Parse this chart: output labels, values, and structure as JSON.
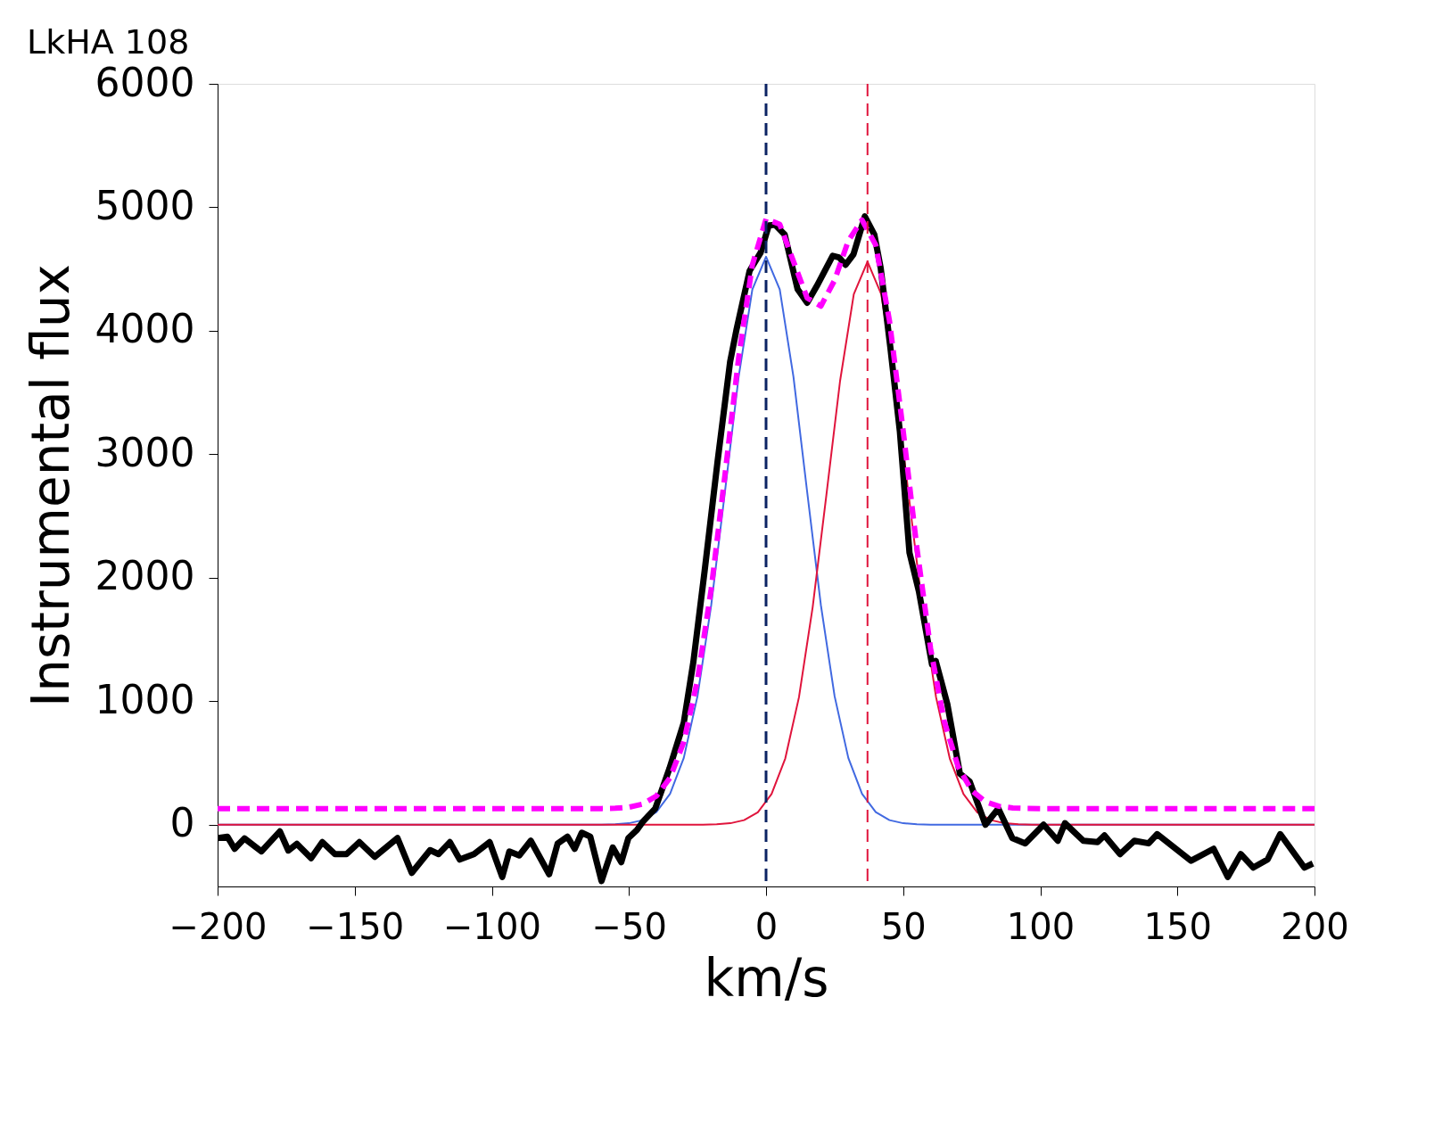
{
  "chart_data": {
    "type": "line",
    "title": "LkHA 108",
    "xlabel": "km/s",
    "ylabel": "Instrumental flux",
    "xlim": [
      -200,
      200
    ],
    "xticks": [
      -200,
      -150,
      -100,
      -50,
      0,
      50,
      100,
      150,
      200
    ],
    "ylim": [
      -500,
      6000
    ],
    "yticks": [
      0,
      1000,
      2000,
      3000,
      4000,
      5000,
      6000
    ],
    "grid": false,
    "marker": "none",
    "ref_lines": [
      {
        "axis": "x",
        "value": 0,
        "color": "#0b2363",
        "line_style": "dashed"
      },
      {
        "axis": "x",
        "value": 37,
        "color": "#e0143c",
        "line_style": "dashed"
      }
    ],
    "series": [
      {
        "color": "#4169e1",
        "line_style": "solid",
        "x": [
          -200,
          -60,
          -55,
          -50,
          -45,
          -40,
          -35,
          -30,
          -25,
          -20,
          -15,
          -10,
          -5,
          0,
          5,
          10,
          15,
          20,
          25,
          30,
          35,
          40,
          45,
          50,
          55,
          60,
          200
        ],
        "values": [
          0,
          1,
          3,
          12,
          37,
          102,
          250,
          541,
          1041,
          1777,
          2694,
          3627,
          4334,
          4600,
          4334,
          3627,
          2694,
          1777,
          1041,
          541,
          250,
          102,
          37,
          12,
          3,
          1,
          0
        ]
      },
      {
        "color": "#e0143c",
        "line_style": "solid",
        "x": [
          -200,
          -23,
          -18,
          -13,
          -8,
          -3,
          2,
          7,
          12,
          17,
          22,
          27,
          32,
          37,
          42,
          47,
          52,
          57,
          62,
          67,
          72,
          77,
          82,
          87,
          92,
          97,
          200
        ],
        "values": [
          0,
          1,
          3,
          12,
          37,
          101,
          248,
          536,
          1032,
          1762,
          2670,
          3595,
          4296,
          4560,
          4296,
          3595,
          2670,
          1762,
          1032,
          536,
          248,
          101,
          37,
          12,
          3,
          1,
          0
        ]
      },
      {
        "color": "#000000",
        "line_style": "solid",
        "x": [
          -200,
          -196.4,
          -193.8,
          -190.2,
          -184,
          -177.3,
          -174.2,
          -171.1,
          -165.9,
          -161.8,
          -157.2,
          -153,
          -148.3,
          -142.7,
          -134.4,
          -129.2,
          -122.5,
          -119.4,
          -115.3,
          -111.7,
          -106.5,
          -100.8,
          -96.2,
          -93.6,
          -90,
          -85.8,
          -79.1,
          -76,
          -72.4,
          -69.8,
          -67.2,
          -64.1,
          -60,
          -55.9,
          -52.8,
          -50.2,
          -47.1,
          -45,
          -40.4,
          -35.2,
          -30,
          -26.5,
          -22.4,
          -17.7,
          -13.1,
          -10.7,
          -6,
          -2,
          1,
          3.3,
          6.8,
          11.5,
          15,
          18.5,
          24.3,
          26.6,
          29,
          31.9,
          36,
          39.5,
          41.8,
          45.3,
          48.8,
          52.3,
          55.8,
          60.5,
          61.9,
          66.1,
          70.7,
          74.3,
          80,
          84.7,
          89.8,
          94.5,
          101.2,
          106.4,
          109,
          115.7,
          120.9,
          123.4,
          129.1,
          134.3,
          139.5,
          142.6,
          155,
          163.2,
          168.4,
          173.1,
          177.7,
          182.9,
          187.5,
          196.3,
          199.4
        ],
        "values": [
          -108,
          -97,
          -195,
          -111,
          -216,
          -54,
          -209,
          -155,
          -271,
          -141,
          -238,
          -238,
          -141,
          -260,
          -108,
          -390,
          -206,
          -238,
          -141,
          -282,
          -238,
          -141,
          -423,
          -217,
          -249,
          -130,
          -401,
          -152,
          -97,
          -195,
          -65,
          -97,
          -456,
          -184,
          -303,
          -108,
          -43,
          22,
          131,
          457,
          826,
          1319,
          2055,
          2939,
          3749,
          4018,
          4485,
          4632,
          4853,
          4858,
          4779,
          4337,
          4227,
          4362,
          4607,
          4595,
          4534,
          4620,
          4926,
          4779,
          4509,
          3871,
          3184,
          2203,
          1883,
          1300,
          1325,
          978,
          413,
          348,
          0,
          131,
          -108,
          -151,
          0,
          -130,
          12,
          -130,
          -141,
          -87,
          -238,
          -130,
          -151,
          -76,
          -292,
          -195,
          -423,
          -238,
          -347,
          -282,
          -76,
          -347,
          -314
        ]
      },
      {
        "color": "#ff00ff",
        "line_style": "dashed",
        "x": [
          -200,
          -60,
          -55,
          -50,
          -45,
          -40,
          -35,
          -30,
          -25,
          -20,
          -15,
          -10,
          -5,
          0,
          5,
          10,
          15,
          20,
          25,
          30,
          35,
          40,
          45,
          50,
          55,
          60,
          65,
          70,
          75,
          80,
          85,
          90,
          95,
          100,
          200
        ],
        "values": [
          130,
          131,
          133,
          142,
          167,
          232,
          380,
          671,
          1172,
          1909,
          2831,
          3781,
          4533,
          4906,
          4863,
          4562,
          4266,
          4200,
          4409,
          4729,
          4897,
          4695,
          4083,
          3192,
          2243,
          1427,
          837,
          472,
          277,
          186,
          149,
          136,
          132,
          131,
          130
        ]
      }
    ]
  }
}
